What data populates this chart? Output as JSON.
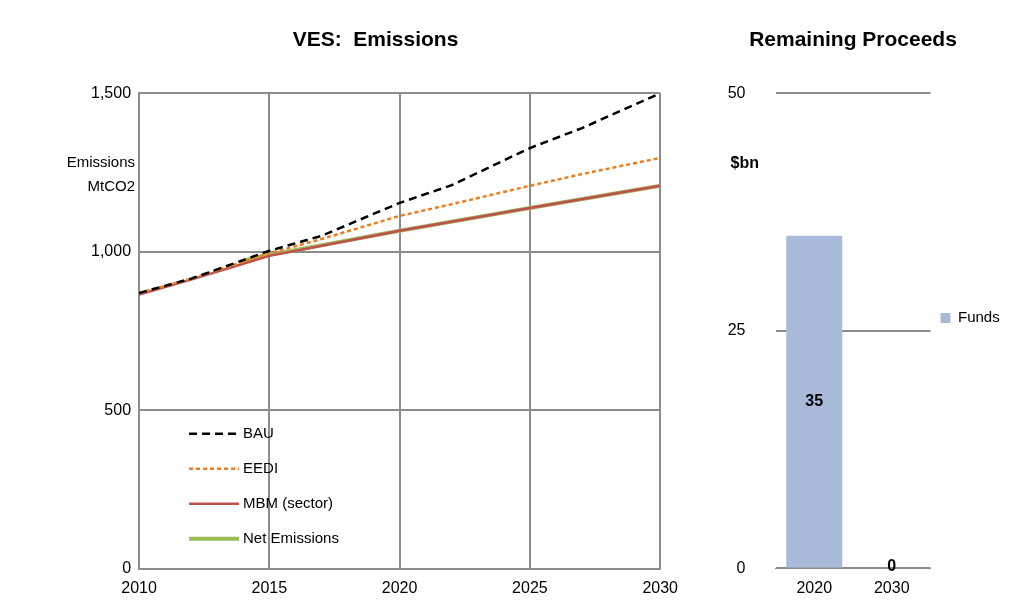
{
  "chart_data": [
    {
      "type": "line",
      "title": "VES:  Emissions",
      "ylabel": "Emissions MtCO2",
      "xlim": [
        2010,
        2030
      ],
      "xticks": [
        2010,
        2015,
        2020,
        2025,
        2030
      ],
      "ylim": [
        0,
        1500
      ],
      "yticks": [
        0,
        {
          "value": 500,
          "label": "500"
        },
        {
          "value": 1000,
          "label": "1,000"
        },
        {
          "value": 1500,
          "label": "1,500"
        }
      ],
      "grid": true,
      "legend": "bottom left",
      "marker": "none",
      "series": [
        {
          "name": "BAU",
          "color": "#000000",
          "line_style": "dashed",
          "x": [
            2010,
            2012,
            2015,
            2017,
            2020,
            2022,
            2025,
            2027,
            2030
          ],
          "values": [
            870,
            915,
            1003,
            1050,
            1154,
            1210,
            1327,
            1390,
            1500
          ]
        },
        {
          "name": "EEDI",
          "color": "#f07c1c",
          "line_style": "dotted",
          "x": [
            2010,
            2012,
            2015,
            2017,
            2020,
            2022,
            2025,
            2027,
            2030
          ],
          "values": [
            870,
            915,
            995,
            1040,
            1113,
            1150,
            1208,
            1245,
            1296
          ]
        },
        {
          "name": "MBM (sector)",
          "color": "#c0504d",
          "line_style": "solid",
          "x": [
            2010,
            2012,
            2015,
            2020,
            2025,
            2030
          ],
          "values": [
            865,
            912,
            987,
            1066,
            1138,
            1208
          ]
        },
        {
          "name": "Net Emissions",
          "color": "#9bbb59",
          "line_style": "solid",
          "x": [
            2014,
            2015,
            2020,
            2025,
            2030
          ],
          "values": [
            972,
            990,
            1066,
            1138,
            1208
          ]
        }
      ]
    },
    {
      "type": "bar",
      "title": "Remaining Proceeds",
      "ylabel": "$bn",
      "categories": [
        "2020",
        "2030"
      ],
      "ylim": [
        0,
        50
      ],
      "yticks": [
        0,
        25,
        50
      ],
      "grid": "y",
      "legend": "right",
      "data_labels": true,
      "series": [
        {
          "name": "Funds",
          "color": "#a9b9d9",
          "values": [
            35,
            0
          ]
        }
      ]
    }
  ]
}
